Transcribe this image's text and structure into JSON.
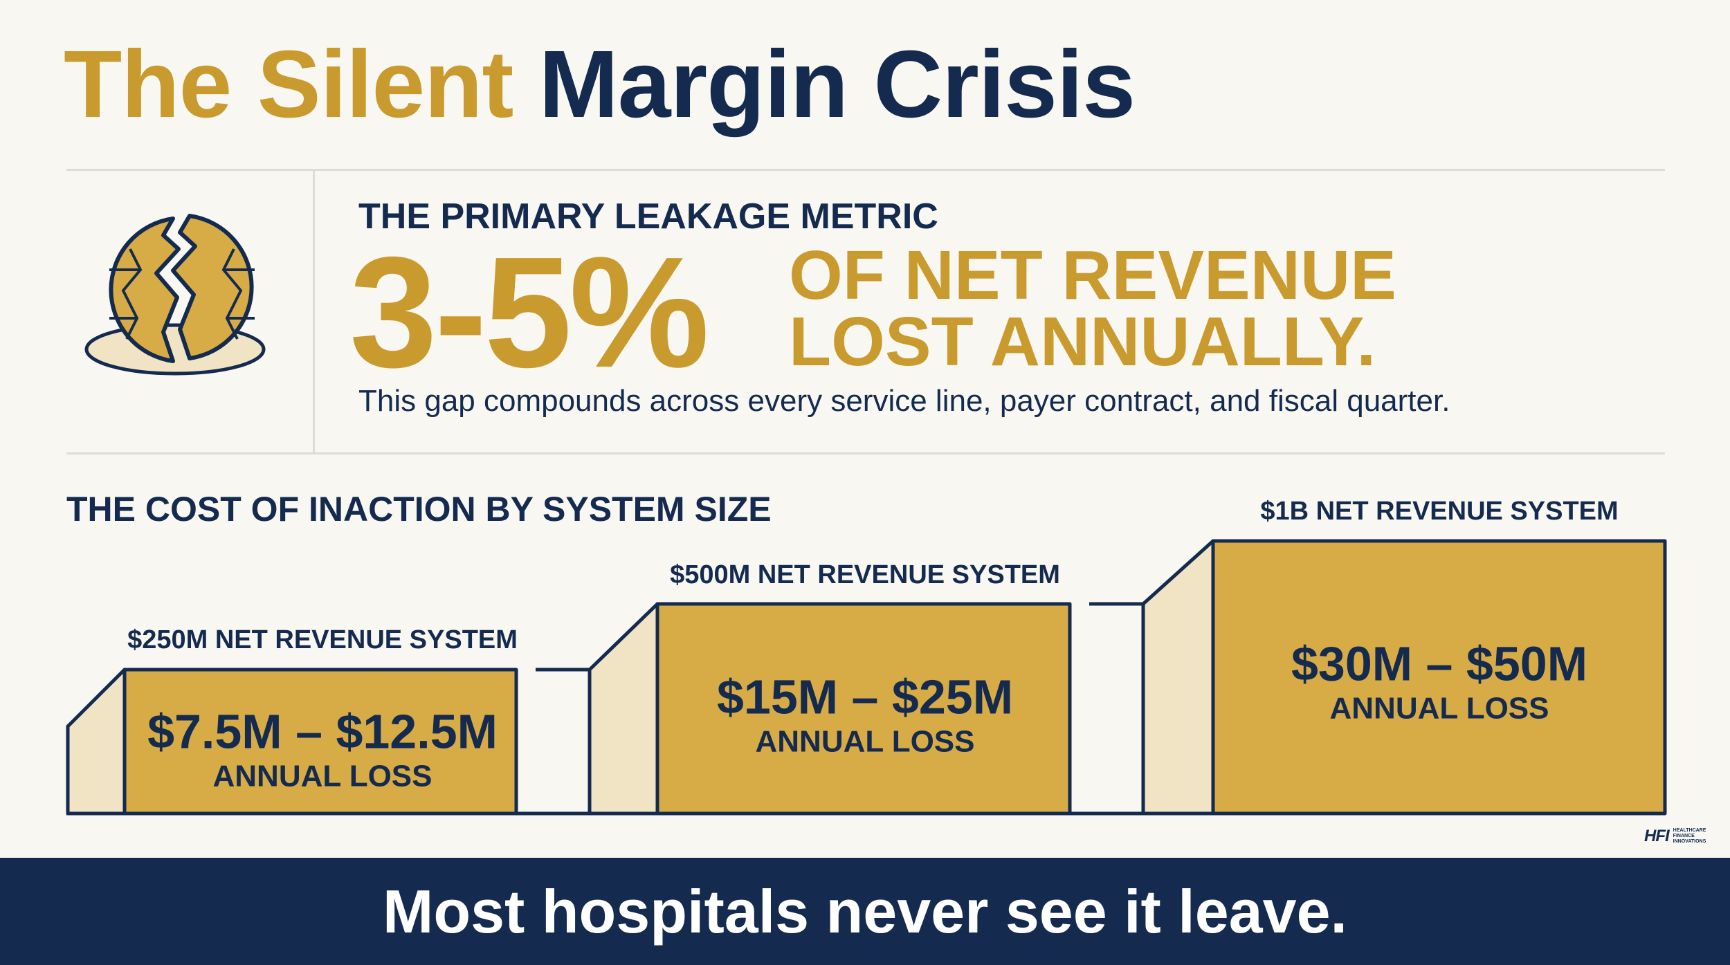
{
  "title": {
    "part1": "The Silent",
    "part2": "Margin Crisis"
  },
  "metric": {
    "label": "THE PRIMARY LEAKAGE METRIC",
    "percent": "3-5%",
    "desc_line1": "OF NET REVENUE",
    "desc_line2": "LOST ANNUALLY.",
    "subtext": "This gap compounds across every service line, payer contract, and fiscal quarter."
  },
  "cost": {
    "title": "THE COST OF INACTION BY SYSTEM SIZE",
    "tiers": [
      {
        "label": "$250M NET REVENUE SYSTEM",
        "amount": "$7.5M – $12.5M",
        "loss_label": "ANNUAL LOSS"
      },
      {
        "label": "$500M NET REVENUE SYSTEM",
        "amount": "$15M – $25M",
        "loss_label": "ANNUAL LOSS"
      },
      {
        "label": "$1B NET REVENUE SYSTEM",
        "amount": "$30M – $50M",
        "loss_label": "ANNUAL LOSS"
      }
    ]
  },
  "footer": {
    "text": "Most hospitals never see it leave."
  },
  "logo": {
    "mark": "HFI",
    "line1": "HEALTHCARE",
    "line2": "FINANCE",
    "line3": "INNOVATIONS"
  },
  "colors": {
    "gold": "#c99a2e",
    "navy": "#142a4e",
    "box_fill": "#d7ab45",
    "side_fill": "#f0e4c5",
    "background": "#f8f7f2"
  },
  "icons": {
    "metric_icon": "broken-coin-icon"
  }
}
